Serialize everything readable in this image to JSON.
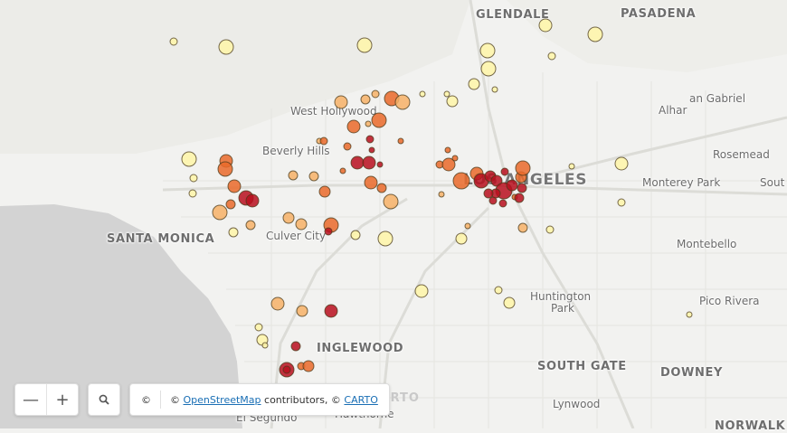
{
  "map": {
    "labels": {
      "glendale": "GLENDALE",
      "pasadena": "PASADENA",
      "san_gabriel": "an Gabriel",
      "alhambra": "Alhar",
      "rosemead": "Rosemead",
      "monterey_park": "Monterey Park",
      "south": "Sout",
      "west_hollywood": "West Hollywood",
      "beverly_hills": "Beverly Hills",
      "los_angeles": "LOS ANGELES",
      "santa_monica": "SANTA MONICA",
      "culver_city": "Culver City",
      "montebello": "Montebello",
      "huntington_park_1": "Huntington",
      "huntington_park_2": "Park",
      "pico_rivera": "Pico Rivera",
      "inglewood": "INGLEWOOD",
      "south_gate": "SOUTH GATE",
      "downey": "DOWNEY",
      "lynwood": "Lynwood",
      "el_segundo": "El Segundo",
      "hawthorne": "Hawthorne",
      "norwalk": "NORWALK"
    },
    "colors": {
      "low": "#fff6a8",
      "mid": "#f7b267",
      "high": "#ea6a2a",
      "max": "#b80f1f",
      "water": "#d3d3d3",
      "land": "#f2f2f0"
    }
  },
  "controls": {
    "zoom_out": "—",
    "zoom_in": "+",
    "search_icon": "search-icon",
    "copyright": "©",
    "attribution_prefix": "©",
    "osm_link": "OpenStreetMap",
    "contributors_text": "contributors, ©",
    "carto_link": "CARTO",
    "carto_watermark": "CARTO"
  }
}
